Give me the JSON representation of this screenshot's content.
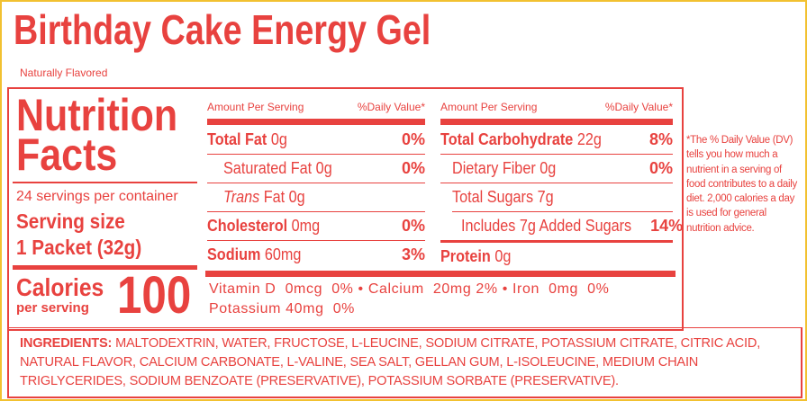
{
  "title": "Birthday Cake Energy Gel",
  "subtitle": "Naturally Flavored",
  "facts": {
    "heading": [
      "Nutrition",
      "Facts"
    ],
    "servings": "24 servings per container",
    "serving_size_label": "Serving size",
    "serving_size": "1 Packet (32g)",
    "calories_label": "Calories",
    "calories_sub": "per serving",
    "calories": 100
  },
  "left_table": {
    "header": [
      "Amount Per Serving",
      "%Daily Value*"
    ],
    "rows": [
      {
        "name": "Total Fat",
        "amount": "0g",
        "dv": "0%"
      },
      {
        "name": "Saturated Fat",
        "amount": "0g",
        "dv": "0%"
      },
      {
        "name_italic": "Trans",
        "name": "Fat",
        "amount": "0g"
      },
      {
        "name": "Cholesterol",
        "amount": "0mg",
        "dv": "0%"
      },
      {
        "name": "Sodium",
        "amount": "60mg",
        "dv": "3%"
      }
    ]
  },
  "right_table": {
    "header": [
      "Amount Per Serving",
      "%Daily Value*"
    ],
    "rows": [
      {
        "name": "Total Carbohydrate",
        "amount": "22g",
        "dv": "8%"
      },
      {
        "name": "Dietary Fiber",
        "amount": "0g",
        "dv": "0%"
      },
      {
        "name": "Total Sugars",
        "amount": "7g"
      },
      {
        "name": "Includes 7g Added Sugars",
        "dv": "14%"
      },
      {
        "name": "Protein",
        "amount": "0g"
      }
    ]
  },
  "micronutrients": [
    {
      "name": "Vitamin D",
      "amount": "0mcg",
      "dv": "0%"
    },
    {
      "name": "Calcium",
      "amount": "20mg",
      "dv": "2%"
    },
    {
      "name": "Iron",
      "amount": "0mg",
      "dv": "0%"
    },
    {
      "name": "Potassium",
      "amount": "40mg",
      "dv": "0%"
    }
  ],
  "footnote": "*The % Daily Value (DV) tells you how much a nutrient in a serving of food contributes to a daily diet. 2,000 calories a day is used for general nutrition advice.",
  "ingredients": {
    "label": "INGREDIENTS:",
    "text": "MALTODEXTRIN, WATER, FRUCTOSE, L-LEUCINE, SODIUM CITRATE, POTASSIUM CITRATE, CITRIC ACID, NATURAL FLAVOR, CALCIUM CARBONATE, L-VALINE, SEA SALT, GELLAN GUM, L-ISOLEUCINE, MEDIUM CHAIN TRIGLYCERIDES, SODIUM BENZOATE (PRESERVATIVE), POTASSIUM SORBATE (PRESERVATIVE)."
  }
}
